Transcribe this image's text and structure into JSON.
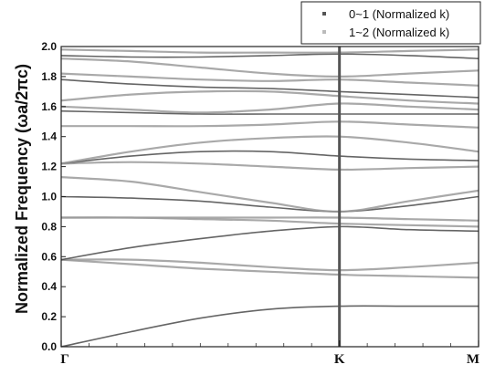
{
  "chart_data": {
    "type": "line",
    "ylabel": "Normalized Frequency (ωa/2πc)",
    "ylim": [
      0.0,
      2.0
    ],
    "y_ticks": [
      "0.0",
      "0.2",
      "0.4",
      "0.6",
      "0.8",
      "1.0",
      "1.2",
      "1.4",
      "1.6",
      "1.8",
      "2.0"
    ],
    "x_tick_labels": [
      "Γ",
      "K",
      "M"
    ],
    "x_tick_positions": [
      0,
      1,
      1.5
    ],
    "xlim": [
      0,
      1.5
    ],
    "k_divider_at": 1,
    "legend": {
      "placement": "top-right",
      "entries": [
        {
          "label": "0~1 (Normalized k)",
          "marker_color": "#555555"
        },
        {
          "label": "1~2 (Normalized k)",
          "marker_color": "#bbbbbb"
        }
      ]
    },
    "colors": {
      "band": "#9a9a9a",
      "band_dark": "#4a4a4a",
      "divider": "#555555",
      "frame": "#222222"
    },
    "series": [
      {
        "x": [
          0,
          0.25,
          0.5,
          0.75,
          1.0,
          1.25,
          1.5
        ],
        "y": [
          0.0,
          0.1,
          0.19,
          0.25,
          0.27,
          0.27,
          0.27
        ]
      },
      {
        "x": [
          0,
          0.25,
          0.5,
          0.75,
          1.0,
          1.25,
          1.5
        ],
        "y": [
          0.58,
          0.55,
          0.52,
          0.5,
          0.48,
          0.47,
          0.46
        ]
      },
      {
        "x": [
          0,
          0.25,
          0.5,
          0.75,
          1.0,
          1.25,
          1.5
        ],
        "y": [
          0.58,
          0.58,
          0.56,
          0.53,
          0.51,
          0.53,
          0.56
        ]
      },
      {
        "x": [
          0,
          0.25,
          0.5,
          0.75,
          1.0,
          1.25,
          1.5
        ],
        "y": [
          0.58,
          0.66,
          0.72,
          0.77,
          0.8,
          0.78,
          0.77
        ]
      },
      {
        "x": [
          0,
          0.25,
          0.5,
          0.75,
          1.0,
          1.25,
          1.5
        ],
        "y": [
          0.86,
          0.86,
          0.85,
          0.84,
          0.82,
          0.81,
          0.8
        ]
      },
      {
        "x": [
          0,
          0.25,
          0.5,
          0.75,
          1.0,
          1.25,
          1.5
        ],
        "y": [
          0.86,
          0.86,
          0.86,
          0.86,
          0.86,
          0.85,
          0.84
        ]
      },
      {
        "x": [
          0,
          0.25,
          0.5,
          0.75,
          1.0,
          1.25,
          1.5
        ],
        "y": [
          1.0,
          0.99,
          0.97,
          0.93,
          0.9,
          0.94,
          1.0
        ]
      },
      {
        "x": [
          0,
          0.25,
          0.5,
          0.75,
          1.0,
          1.25,
          1.5
        ],
        "y": [
          1.13,
          1.1,
          1.03,
          0.96,
          0.9,
          0.97,
          1.04
        ]
      },
      {
        "x": [
          0,
          0.25,
          0.5,
          0.75,
          1.0,
          1.25,
          1.5
        ],
        "y": [
          1.22,
          1.23,
          1.22,
          1.2,
          1.18,
          1.19,
          1.2
        ]
      },
      {
        "x": [
          0,
          0.25,
          0.5,
          0.75,
          1.0,
          1.25,
          1.5
        ],
        "y": [
          1.22,
          1.27,
          1.3,
          1.3,
          1.27,
          1.25,
          1.24
        ]
      },
      {
        "x": [
          0,
          0.25,
          0.5,
          0.75,
          1.0,
          1.25,
          1.5
        ],
        "y": [
          1.22,
          1.3,
          1.36,
          1.39,
          1.4,
          1.36,
          1.3
        ]
      },
      {
        "x": [
          0,
          0.25,
          0.5,
          0.75,
          1.0,
          1.25,
          1.5
        ],
        "y": [
          1.47,
          1.47,
          1.47,
          1.48,
          1.5,
          1.48,
          1.46
        ]
      },
      {
        "x": [
          0,
          0.25,
          0.5,
          0.75,
          1.0,
          1.25,
          1.5
        ],
        "y": [
          1.57,
          1.56,
          1.55,
          1.55,
          1.55,
          1.55,
          1.55
        ]
      },
      {
        "x": [
          0,
          0.25,
          0.5,
          0.75,
          1.0,
          1.25,
          1.5
        ],
        "y": [
          1.6,
          1.58,
          1.56,
          1.58,
          1.62,
          1.6,
          1.58
        ]
      },
      {
        "x": [
          0,
          0.25,
          0.5,
          0.75,
          1.0,
          1.25,
          1.5
        ],
        "y": [
          1.64,
          1.68,
          1.7,
          1.7,
          1.67,
          1.64,
          1.62
        ]
      },
      {
        "x": [
          0,
          0.25,
          0.5,
          0.75,
          1.0,
          1.25,
          1.5
        ],
        "y": [
          1.78,
          1.75,
          1.73,
          1.72,
          1.7,
          1.68,
          1.66
        ]
      },
      {
        "x": [
          0,
          0.25,
          0.5,
          0.75,
          1.0,
          1.25,
          1.5
        ],
        "y": [
          1.82,
          1.8,
          1.78,
          1.77,
          1.78,
          1.76,
          1.74
        ]
      },
      {
        "x": [
          0,
          0.25,
          0.5,
          0.75,
          1.0,
          1.25,
          1.5
        ],
        "y": [
          1.92,
          1.9,
          1.86,
          1.82,
          1.8,
          1.82,
          1.84
        ]
      },
      {
        "x": [
          0,
          0.25,
          0.5,
          0.75,
          1.0,
          1.25,
          1.5
        ],
        "y": [
          1.94,
          1.93,
          1.93,
          1.94,
          1.95,
          1.94,
          1.92
        ]
      },
      {
        "x": [
          0,
          0.25,
          0.5,
          0.75,
          1.0,
          1.25,
          1.5
        ],
        "y": [
          1.98,
          1.97,
          1.96,
          1.96,
          1.96,
          1.97,
          1.98
        ]
      }
    ]
  }
}
